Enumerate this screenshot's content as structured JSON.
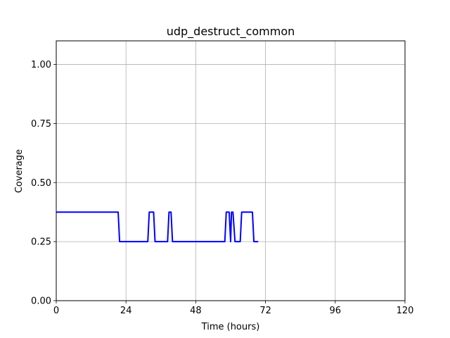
{
  "chart_data": {
    "type": "line",
    "title": "udp_destruct_common",
    "xlabel": "Time (hours)",
    "ylabel": "Coverage",
    "xlim": [
      0,
      120
    ],
    "ylim": [
      0,
      1.1
    ],
    "xticks": [
      0,
      24,
      48,
      72,
      96,
      120
    ],
    "xtick_labels": [
      "0",
      "24",
      "48",
      "72",
      "96",
      "120"
    ],
    "yticks": [
      0,
      0.25,
      0.5,
      0.75,
      1.0
    ],
    "ytick_labels": [
      "0.00",
      "0.25",
      "0.50",
      "0.75",
      "1.00"
    ],
    "grid": true,
    "line_color": "#0000ff",
    "series": [
      {
        "x": [
          0,
          21.3,
          21.8,
          31.5,
          32.0,
          33.5,
          34.0,
          38.3,
          38.8,
          39.5,
          40.0,
          58.0,
          58.5,
          59.5,
          60.0,
          60.3,
          60.8,
          61.5,
          62.0,
          63.3,
          63.8,
          67.5,
          68.0,
          69.5
        ],
        "y": [
          0.375,
          0.375,
          0.25,
          0.25,
          0.375,
          0.375,
          0.25,
          0.25,
          0.375,
          0.375,
          0.25,
          0.25,
          0.375,
          0.375,
          0.25,
          0.375,
          0.375,
          0.25,
          0.25,
          0.25,
          0.375,
          0.375,
          0.25,
          0.25
        ]
      }
    ]
  }
}
